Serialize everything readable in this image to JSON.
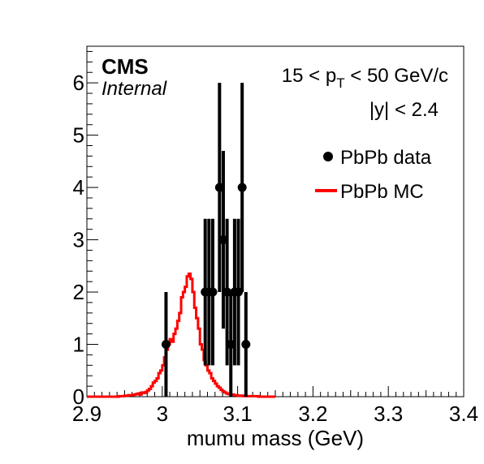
{
  "chart_data": {
    "type": "histogram",
    "xlabel": "mumu mass (GeV)",
    "ylabel": "",
    "xlim": [
      2.9,
      3.4
    ],
    "ylim": [
      0,
      6.7
    ],
    "x_ticks": [
      "2.9",
      "3",
      "3.1",
      "3.2",
      "3.3",
      "3.4"
    ],
    "y_ticks": [
      "0",
      "1",
      "2",
      "3",
      "4",
      "5",
      "6"
    ],
    "experiment": "CMS",
    "status": "Internal",
    "kinematics": {
      "pt_prefix": "15 < p",
      "pt_sub": "T",
      "pt_suffix": " < 50 GeV/c",
      "rapidity": "|y| < 2.4"
    },
    "legend": {
      "position": "top-right",
      "entries": [
        {
          "label": "PbPb data",
          "style": "marker",
          "color": "#000000"
        },
        {
          "label": "PbPb MC",
          "style": "line",
          "color": "#ff0000"
        }
      ]
    },
    "series": [
      {
        "name": "PbPb data",
        "kind": "points",
        "color": "#000000",
        "points": [
          {
            "x": 3.005,
            "y": 1,
            "err_lo": 1.0,
            "err_hi": 1.0
          },
          {
            "x": 3.057,
            "y": 2,
            "err_lo": 1.4,
            "err_hi": 1.4
          },
          {
            "x": 3.062,
            "y": 2,
            "err_lo": 1.4,
            "err_hi": 1.4
          },
          {
            "x": 3.067,
            "y": 2,
            "err_lo": 1.4,
            "err_hi": 1.4
          },
          {
            "x": 3.076,
            "y": 4,
            "err_lo": 2.0,
            "err_hi": 2.0
          },
          {
            "x": 3.081,
            "y": 3,
            "err_lo": 1.7,
            "err_hi": 1.7
          },
          {
            "x": 3.086,
            "y": 2,
            "err_lo": 1.4,
            "err_hi": 1.4
          },
          {
            "x": 3.091,
            "y": 1,
            "err_lo": 1.0,
            "err_hi": 1.0
          },
          {
            "x": 3.096,
            "y": 2,
            "err_lo": 1.4,
            "err_hi": 1.4
          },
          {
            "x": 3.101,
            "y": 2,
            "err_lo": 1.4,
            "err_hi": 1.4
          },
          {
            "x": 3.106,
            "y": 4,
            "err_lo": 2.0,
            "err_hi": 2.0
          },
          {
            "x": 3.111,
            "y": 1,
            "err_lo": 1.0,
            "err_hi": 1.0
          }
        ]
      },
      {
        "name": "PbPb MC",
        "kind": "step",
        "color": "#ff0000",
        "bin_width": 0.0025,
        "bin_start": 2.9,
        "values": [
          0,
          0,
          0,
          0,
          0,
          0,
          0,
          0,
          0,
          0,
          0,
          0,
          0,
          0,
          0,
          0,
          0,
          0.01,
          0.01,
          0.01,
          0.02,
          0.02,
          0.03,
          0.03,
          0.03,
          0.04,
          0.05,
          0.06,
          0.04,
          0.08,
          0.07,
          0.09,
          0.12,
          0.15,
          0.2,
          0.27,
          0.3,
          0.35,
          0.45,
          0.5,
          0.6,
          0.75,
          0.9,
          1.0,
          1.1,
          1.05,
          1.2,
          1.3,
          1.45,
          1.6,
          1.9,
          2.0,
          2.1,
          2.3,
          2.35,
          2.25,
          2.0,
          1.7,
          1.5,
          1.3,
          1.0,
          0.9,
          0.7,
          0.6,
          0.5,
          0.45,
          0.35,
          0.3,
          0.25,
          0.2,
          0.17,
          0.13,
          0.1,
          0.08,
          0.06,
          0.05,
          0.04,
          0.04,
          0.03,
          0.03,
          0.02,
          0.02,
          0.02,
          0.01,
          0.01,
          0.01,
          0.01,
          0.01,
          0.01,
          0.01,
          0.01,
          0,
          0,
          0,
          0,
          0,
          0,
          0,
          0,
          0
        ]
      }
    ]
  }
}
